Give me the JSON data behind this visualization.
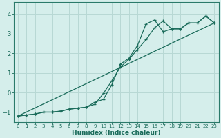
{
  "xlabel": "Humidex (Indice chaleur)",
  "background_color": "#d5eeeb",
  "grid_color": "#b8d8d4",
  "line_color": "#1a6b5a",
  "spine_color": "#2a7a6a",
  "xlim": [
    -0.5,
    23.5
  ],
  "ylim": [
    -1.5,
    4.6
  ],
  "yticks": [
    -1,
    0,
    1,
    2,
    3,
    4
  ],
  "xticks": [
    0,
    1,
    2,
    3,
    4,
    5,
    6,
    7,
    8,
    9,
    10,
    11,
    12,
    13,
    14,
    15,
    16,
    17,
    18,
    19,
    20,
    21,
    22,
    23
  ],
  "line1_x": [
    0,
    1,
    2,
    3,
    4,
    5,
    6,
    7,
    8,
    9,
    10,
    11,
    12,
    13,
    14,
    15,
    16,
    17,
    18,
    19,
    20,
    21,
    22,
    23
  ],
  "line1_y": [
    -1.2,
    -1.15,
    -1.1,
    -1.0,
    -1.0,
    -0.95,
    -0.85,
    -0.8,
    -0.75,
    -0.6,
    -0.05,
    0.6,
    1.3,
    1.7,
    2.2,
    2.7,
    3.3,
    3.65,
    3.25,
    3.25,
    3.55,
    3.55,
    3.9,
    3.55
  ],
  "line2_x": [
    0,
    1,
    2,
    3,
    4,
    5,
    6,
    7,
    8,
    9,
    10,
    11,
    12,
    13,
    14,
    15,
    16,
    17,
    18,
    19,
    20,
    21,
    22,
    23
  ],
  "line2_y": [
    -1.2,
    -1.15,
    -1.1,
    -1.0,
    -1.0,
    -0.95,
    -0.85,
    -0.8,
    -0.75,
    -0.5,
    -0.35,
    0.4,
    1.45,
    1.75,
    2.4,
    3.5,
    3.7,
    3.1,
    3.25,
    3.25,
    3.55,
    3.55,
    3.9,
    3.55
  ],
  "line3_x": [
    0,
    23
  ],
  "line3_y": [
    -1.2,
    3.55
  ]
}
